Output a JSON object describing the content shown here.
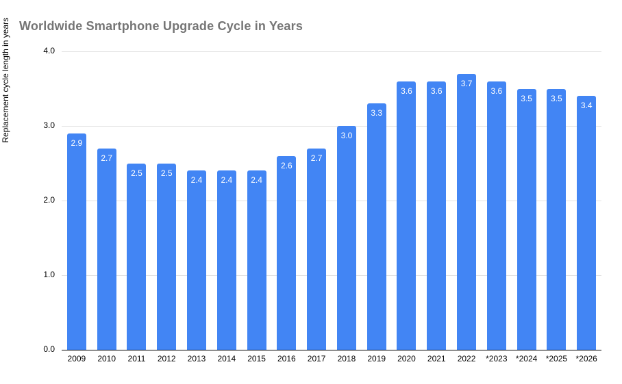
{
  "chart_data": {
    "type": "bar",
    "title": "Worldwide Smartphone Upgrade Cycle in Years",
    "categories": [
      "2009",
      "2010",
      "2011",
      "2012",
      "2013",
      "2014",
      "2015",
      "2016",
      "2017",
      "2018",
      "2019",
      "2020",
      "2021",
      "2022",
      "*2023",
      "*2024",
      "*2025",
      "*2026"
    ],
    "values": [
      2.9,
      2.7,
      2.5,
      2.5,
      2.4,
      2.4,
      2.4,
      2.6,
      2.7,
      3.0,
      3.3,
      3.6,
      3.6,
      3.7,
      3.6,
      3.5,
      3.5,
      3.4
    ],
    "value_labels": [
      "2.9",
      "2.7",
      "2.5",
      "2.5",
      "2.4",
      "2.4",
      "2.4",
      "2.6",
      "2.7",
      "3.0",
      "3.3",
      "3.6",
      "3.6",
      "3.7",
      "3.6",
      "3.5",
      "3.5",
      "3.4"
    ],
    "xlabel": "",
    "ylabel": "Replacement cycle length in years",
    "ylim": [
      0,
      4
    ],
    "yticks": [
      {
        "value": 4,
        "label": "4.0"
      },
      {
        "value": 3,
        "label": "3.0"
      },
      {
        "value": 2,
        "label": "2.0"
      },
      {
        "value": 1,
        "label": "1.0"
      },
      {
        "value": 0,
        "label": "0.0"
      }
    ],
    "grid": true,
    "legend_position": "none",
    "colors": {
      "bar": "#4285f4",
      "value_label": "#ffffff",
      "title": "#757575",
      "gridline": "#e3e3e3",
      "baseline": "#000000",
      "tick_label": "#000000"
    }
  }
}
